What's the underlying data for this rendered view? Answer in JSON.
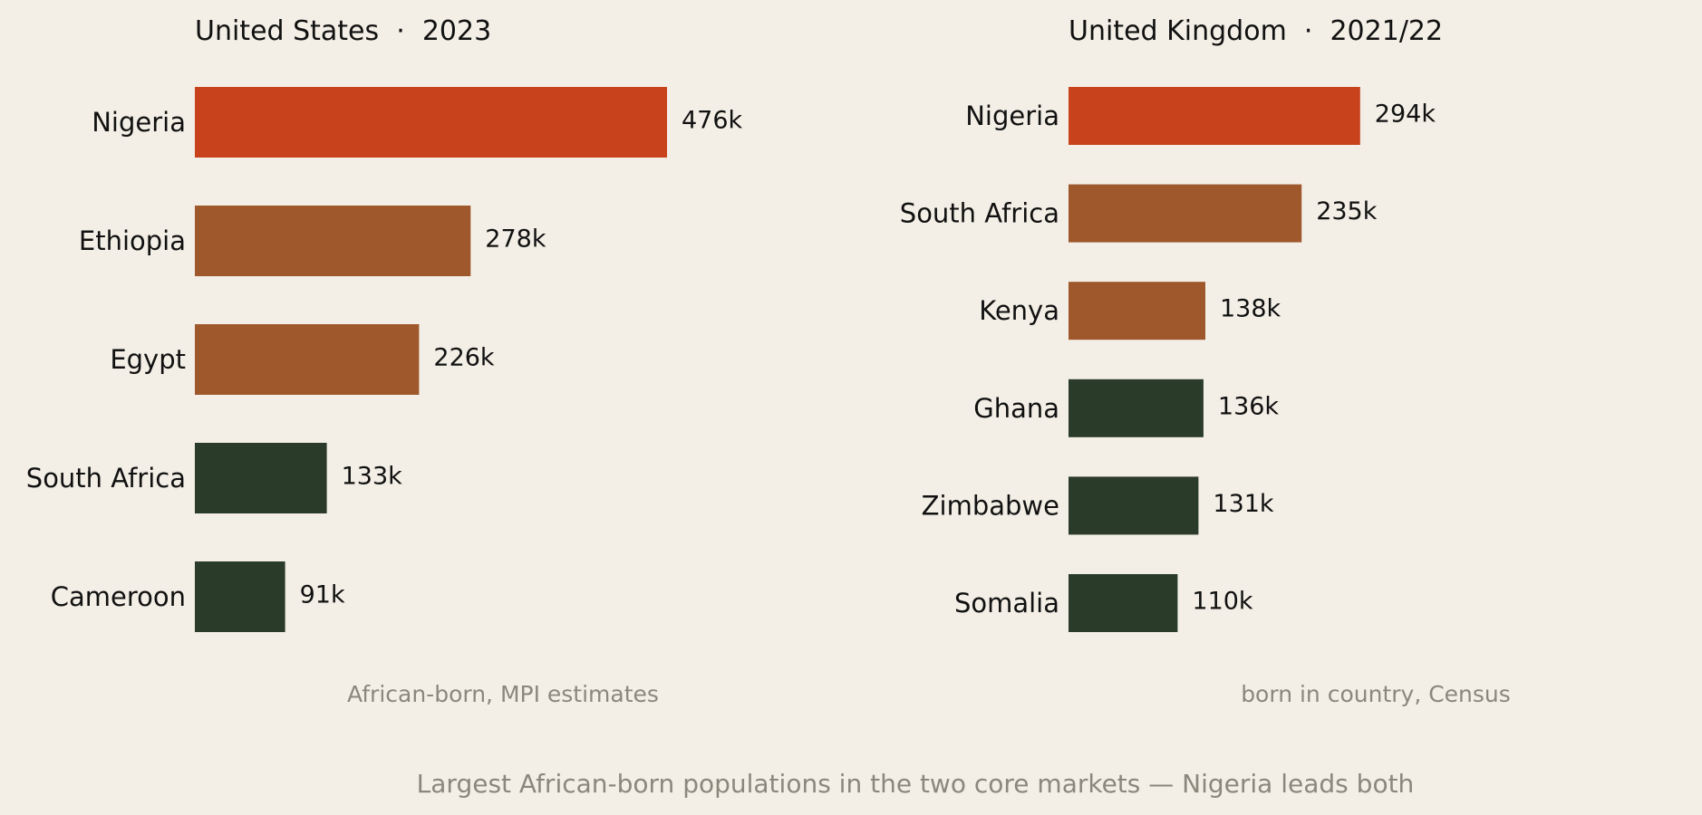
{
  "caption": "Largest African-born populations in the two core markets — Nigeria leads both",
  "colors": {
    "background": "#F3EFE6",
    "highlight": "#C8431B",
    "mid": "#9E582C",
    "low": "#2A3B29",
    "text": "#111111",
    "muted": "#8A877C"
  },
  "chart_data": [
    {
      "type": "bar",
      "orientation": "horizontal",
      "title": "United States  ·  2023",
      "note": "African-born, MPI estimates",
      "categories": [
        "Nigeria",
        "Ethiopia",
        "Egypt",
        "South Africa",
        "Cameroon"
      ],
      "values": [
        476,
        278,
        226,
        133,
        91
      ],
      "value_labels": [
        "476k",
        "278k",
        "226k",
        "133k",
        "91k"
      ],
      "color_groups": [
        "highlight",
        "mid",
        "mid",
        "low",
        "low"
      ],
      "unit": "thousands",
      "grid": false,
      "axes_visible": false
    },
    {
      "type": "bar",
      "orientation": "horizontal",
      "title": "United Kingdom  ·  2021/22",
      "note": "born in country, Census",
      "categories": [
        "Nigeria",
        "South Africa",
        "Kenya",
        "Ghana",
        "Zimbabwe",
        "Somalia"
      ],
      "values": [
        294,
        235,
        138,
        136,
        131,
        110
      ],
      "value_labels": [
        "294k",
        "235k",
        "138k",
        "136k",
        "131k",
        "110k"
      ],
      "color_groups": [
        "highlight",
        "mid",
        "mid",
        "low",
        "low",
        "low"
      ],
      "unit": "thousands",
      "grid": false,
      "axes_visible": false
    }
  ]
}
